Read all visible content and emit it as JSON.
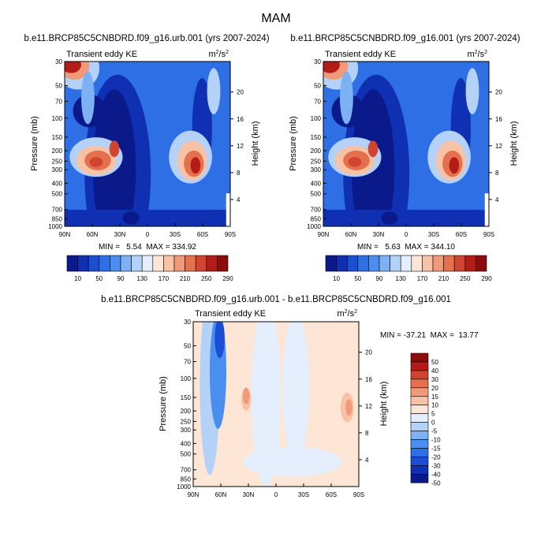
{
  "title": "MAM",
  "common": {
    "x_ticks": [
      "90N",
      "60N",
      "30N",
      "0",
      "30S",
      "60S",
      "90S"
    ],
    "p_ticks": [
      "30",
      "50",
      "70",
      "100",
      "150",
      "200",
      "250",
      "300",
      "400",
      "500",
      "700",
      "850",
      "1000"
    ],
    "h_ticks": [
      "4",
      "8",
      "12",
      "16",
      "20"
    ],
    "ylabel": "Pressure (mb)",
    "ylabel_right": "Height (km)",
    "field_label": "Transient eddy KE",
    "units_base": "m",
    "units_sup1": "2",
    "units_mid": "/s",
    "units_sup2": "2"
  },
  "colors": {
    "ke": [
      "#0a1a8a",
      "#1030b4",
      "#1a4fd4",
      "#2e6fe6",
      "#4a8ef0",
      "#7eb0f4",
      "#b4d2f8",
      "#e4eefc",
      "#fde6d6",
      "#f8c2a6",
      "#f09a7a",
      "#e4704e",
      "#d04430",
      "#b41c18",
      "#8c0c0c"
    ],
    "diff": [
      "#0a1a8a",
      "#1030b4",
      "#1a4fd4",
      "#2e6fe6",
      "#4a8ef0",
      "#7eb0f4",
      "#b4d2f8",
      "#e4eefc",
      "#fde6d6",
      "#f8c2a6",
      "#f09a7a",
      "#e4704e",
      "#d04430",
      "#b41c18",
      "#8c0c0c"
    ]
  },
  "chart_data": [
    {
      "type": "heatmap",
      "id": "left",
      "title": "b.e11.BRCP85C5CNBDRD.f09_g16.urb.001 (yrs 2007-2024)",
      "field": "Transient eddy KE",
      "min": 5.54,
      "max": 334.92,
      "stats": "MIN =   5.54  MAX = 334.92",
      "xrange": [
        90,
        -90
      ],
      "colorbar": {
        "labels": [
          "10",
          "50",
          "90",
          "130",
          "170",
          "210",
          "250",
          "290"
        ]
      }
    },
    {
      "type": "heatmap",
      "id": "right",
      "title": "b.e11.BRCP85C5CNBDRD.f09_g16.001 (yrs 2007-2024)",
      "field": "Transient eddy KE",
      "min": 5.63,
      "max": 344.1,
      "stats": "MIN =   5.63  MAX = 344.10",
      "xrange": [
        90,
        -90
      ],
      "colorbar": {
        "labels": [
          "10",
          "50",
          "90",
          "130",
          "170",
          "210",
          "250",
          "290"
        ]
      }
    },
    {
      "type": "heatmap",
      "id": "diff",
      "title": "b.e11.BRCP85C5CNBDRD.f09_g16.urb.001 - b.e11.BRCP85C5CNBDRD.f09_g16.001",
      "field": "Transient eddy KE",
      "min": -37.21,
      "max": 13.77,
      "stats": "MIN = -37.21  MAX =  13.77",
      "xrange": [
        90,
        -90
      ],
      "colorbar": {
        "labels": [
          "50",
          "40",
          "30",
          "20",
          "15",
          "10",
          "5",
          "0",
          "-5",
          "-10",
          "-15",
          "-20",
          "-30",
          "-40",
          "-50"
        ]
      }
    }
  ]
}
